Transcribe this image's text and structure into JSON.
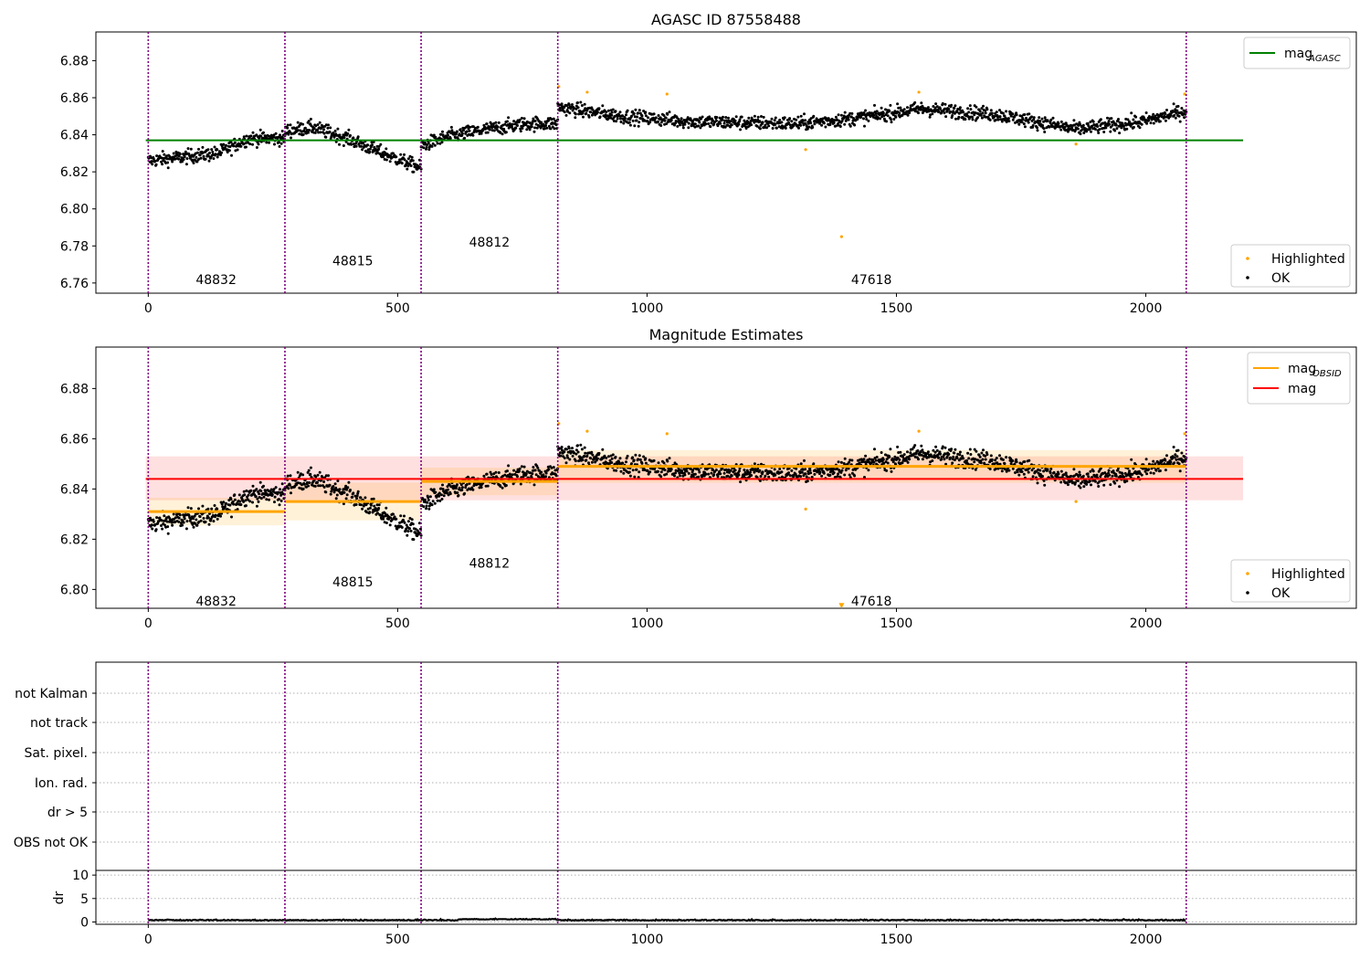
{
  "chart_data": [
    {
      "id": "top",
      "type": "scatter",
      "title": "AGASC ID 87558488",
      "xlim": [
        -105,
        2422
      ],
      "ylim": [
        6.7545,
        6.8955
      ],
      "xticks": [
        0,
        500,
        1000,
        1500,
        2000
      ],
      "yticks": [
        6.76,
        6.78,
        6.8,
        6.82,
        6.84,
        6.86,
        6.88
      ],
      "vlines": [
        0,
        274,
        547,
        821,
        2081
      ],
      "obsids": [
        {
          "label": "48832",
          "x": 136,
          "y": 6.762
        },
        {
          "label": "48815",
          "x": 410,
          "y": 6.772
        },
        {
          "label": "48812",
          "x": 684,
          "y": 6.782
        },
        {
          "label": "47618",
          "x": 1450,
          "y": 6.762
        }
      ],
      "segments": [
        {
          "start": 0,
          "end": 274,
          "points": [
            [
              0,
              6.826
            ],
            [
              70,
              6.828
            ],
            [
              140,
              6.83
            ],
            [
              200,
              6.838
            ],
            [
              274,
              6.838
            ]
          ]
        },
        {
          "start": 274,
          "end": 547,
          "points": [
            [
              274,
              6.842
            ],
            [
              330,
              6.844
            ],
            [
              400,
              6.838
            ],
            [
              470,
              6.83
            ],
            [
              547,
              6.822
            ]
          ]
        },
        {
          "start": 547,
          "end": 821,
          "points": [
            [
              547,
              6.834
            ],
            [
              600,
              6.839
            ],
            [
              680,
              6.843
            ],
            [
              760,
              6.846
            ],
            [
              821,
              6.846
            ]
          ]
        },
        {
          "start": 821,
          "end": 2081,
          "points": [
            [
              821,
              6.855
            ],
            [
              950,
              6.85
            ],
            [
              1100,
              6.847
            ],
            [
              1300,
              6.846
            ],
            [
              1420,
              6.849
            ],
            [
              1550,
              6.854
            ],
            [
              1700,
              6.851
            ],
            [
              1860,
              6.843
            ],
            [
              1990,
              6.847
            ],
            [
              2081,
              6.853
            ]
          ]
        }
      ],
      "scatter_spread": 0.003,
      "highlighted": [
        [
          823,
          6.866
        ],
        [
          880,
          6.863
        ],
        [
          1040,
          6.862
        ],
        [
          1318,
          6.832
        ],
        [
          1390,
          6.785
        ],
        [
          1545,
          6.863
        ],
        [
          1860,
          6.835
        ],
        [
          2078,
          6.862
        ]
      ],
      "hlines": [
        {
          "name": "mag_AGASC",
          "y": 6.837,
          "color": "#008000",
          "x": [
            -5,
            2195
          ]
        }
      ],
      "line_legend": {
        "position": "upper right",
        "entries": [
          {
            "text": "mag",
            "sub": "AGASC",
            "color": "#008000"
          }
        ]
      },
      "point_legend": {
        "position": "lower right",
        "entries": [
          {
            "text": "Highlighted",
            "color": "#ffa500"
          },
          {
            "text": "OK",
            "color": "#000000"
          }
        ]
      },
      "colors": {
        "ok": "#000000",
        "highlighted": "#ffa500",
        "vline": "#800080"
      }
    },
    {
      "id": "middle",
      "type": "scatter",
      "title": "Magnitude Estimates",
      "xlim": [
        -105,
        2422
      ],
      "ylim": [
        6.7925,
        6.8965
      ],
      "xticks": [
        0,
        500,
        1000,
        1500,
        2000
      ],
      "yticks": [
        6.8,
        6.82,
        6.84,
        6.86,
        6.88
      ],
      "vlines": [
        0,
        274,
        547,
        821,
        2081
      ],
      "obsids": [
        {
          "label": "48832",
          "x": 136,
          "y": 6.7955
        },
        {
          "label": "48815",
          "x": 410,
          "y": 6.803
        },
        {
          "label": "48812",
          "x": 684,
          "y": 6.8105
        },
        {
          "label": "47618",
          "x": 1450,
          "y": 6.7955
        }
      ],
      "mag_bands": [
        {
          "x": [
            -5,
            2195
          ],
          "center": 6.844,
          "low": 6.8355,
          "high": 6.853,
          "color": "#ff0000"
        }
      ],
      "obsid_bands": [
        {
          "x": [
            0,
            274
          ],
          "mag": 6.831,
          "low": 6.8255,
          "high": 6.8365
        },
        {
          "x": [
            274,
            547
          ],
          "mag": 6.835,
          "low": 6.8275,
          "high": 6.8425
        },
        {
          "x": [
            547,
            821
          ],
          "mag": 6.843,
          "low": 6.8375,
          "high": 6.8485
        },
        {
          "x": [
            821,
            2081
          ],
          "mag": 6.849,
          "low": 6.8425,
          "high": 6.8555
        }
      ],
      "highlighted": [
        [
          823,
          6.866
        ],
        [
          880,
          6.863
        ],
        [
          1040,
          6.862
        ],
        [
          1318,
          6.832
        ],
        [
          1545,
          6.863
        ],
        [
          1860,
          6.835
        ],
        [
          2078,
          6.862
        ]
      ],
      "offscale_marker": {
        "x": 1390,
        "y": 6.7935
      },
      "line_legend": {
        "position": "upper right",
        "entries": [
          {
            "text": "mag",
            "sub": "OBSID",
            "color": "#ffa500"
          },
          {
            "text": "mag",
            "sub": "",
            "color": "#ff0000"
          }
        ]
      },
      "point_legend": {
        "position": "lower right",
        "entries": [
          {
            "text": "Highlighted",
            "color": "#ffa500"
          },
          {
            "text": "OK",
            "color": "#000000"
          }
        ]
      },
      "colors": {
        "ok": "#000000",
        "highlighted": "#ffa500",
        "obsid_line": "#ffa500",
        "vline": "#800080"
      }
    },
    {
      "id": "flags",
      "type": "scatter",
      "xlim": [
        -105,
        2422
      ],
      "categories": [
        "not Kalman",
        "not track",
        "Sat. pixel.",
        "Ion. rad.",
        "dr > 5",
        "OBS not OK"
      ],
      "vlines": [
        0,
        274,
        547,
        821,
        2081
      ],
      "grid": true
    },
    {
      "id": "dr",
      "type": "line",
      "ylabel": "dr",
      "xlim": [
        -105,
        2422
      ],
      "ylim": [
        -0.5,
        11
      ],
      "xticks": [
        0,
        500,
        1000,
        1500,
        2000
      ],
      "yticks": [
        0,
        5,
        10
      ],
      "vlines": [
        0,
        274,
        547,
        821,
        2081
      ],
      "dr_level": 0.3,
      "dr_spread": 0.15
    }
  ]
}
